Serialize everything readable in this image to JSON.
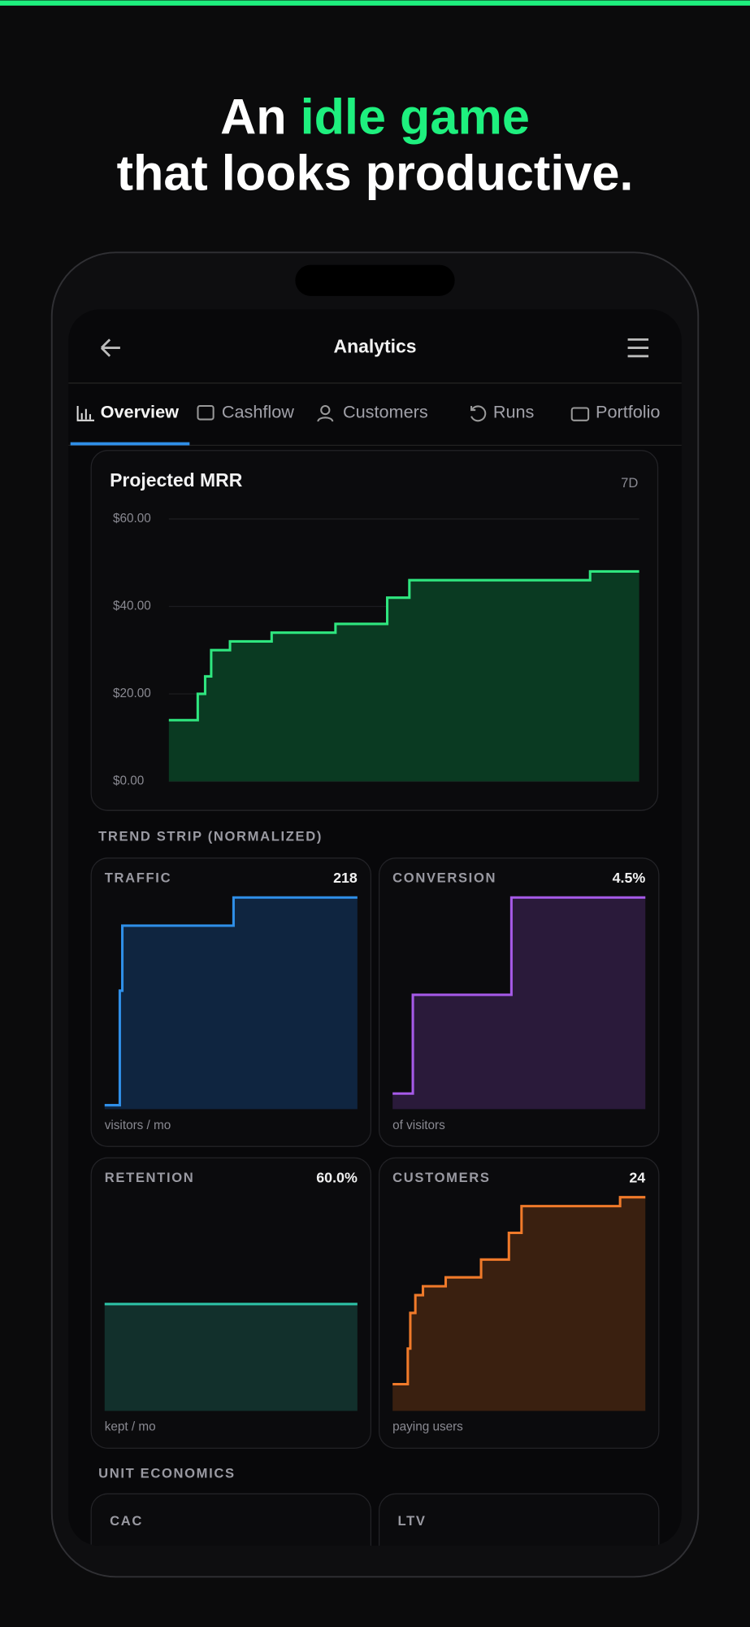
{
  "headline": {
    "lead": "An",
    "highlight": "idle game",
    "line2": "that looks productive."
  },
  "screen": {
    "title": "Analytics",
    "tabs": [
      "Overview",
      "Cashflow",
      "Customers",
      "Runs",
      "Portfolio"
    ]
  },
  "chart_data": [
    {
      "type": "line",
      "step": true,
      "area": true,
      "title": "Projected MRR",
      "range_label": "7D",
      "color": "#2fe67f",
      "fill": "#0a3a22",
      "x": [
        0,
        0.43,
        0.54,
        0.63,
        0.91,
        1.53,
        2.48,
        3.25,
        3.58,
        6.27,
        7
      ],
      "xlim": [
        0,
        7
      ],
      "values": [
        14,
        20,
        24,
        30,
        32,
        34,
        36,
        42,
        46,
        48,
        48
      ],
      "ylim": [
        0,
        60
      ],
      "yticks": [
        {
          "value": 0,
          "label": "$0.00"
        },
        {
          "value": 20,
          "label": "$20.00"
        },
        {
          "value": 40,
          "label": "$40.00"
        },
        {
          "value": 60,
          "label": "$60.00"
        }
      ],
      "grid": true
    },
    {
      "type": "line",
      "step": true,
      "area": true,
      "title": "TRAFFIC",
      "current": 218,
      "caption": "visitors / mo",
      "color": "#2f8fe8",
      "fill": "#0f2540",
      "x": [
        0,
        0.06,
        0.07,
        0.51,
        1
      ],
      "values": [
        4,
        122,
        189,
        218,
        218
      ]
    },
    {
      "type": "line",
      "step": true,
      "area": true,
      "title": "CONVERSION",
      "current": 4.5,
      "current_label": "4.5%",
      "caption": "of visitors",
      "color": "#a65ae8",
      "fill": "#2a1a3a",
      "x": [
        0,
        0.08,
        0.47,
        1
      ],
      "values": [
        0.33,
        2.43,
        4.5,
        4.5
      ]
    },
    {
      "type": "line",
      "step": true,
      "area": true,
      "title": "RETENTION",
      "current": 60,
      "current_label": "60.0%",
      "caption": "kept / mo",
      "color": "#2ec4a8",
      "fill": "#12302c",
      "x": [
        0,
        1
      ],
      "values": [
        60,
        60
      ]
    },
    {
      "type": "line",
      "step": true,
      "area": true,
      "title": "CUSTOMERS",
      "current": 24,
      "caption": "paying users",
      "color": "#f07a2a",
      "fill": "#3a2010",
      "x": [
        0,
        0.06,
        0.07,
        0.09,
        0.12,
        0.21,
        0.35,
        0.46,
        0.51,
        0.9,
        1
      ],
      "values": [
        3,
        7,
        11,
        13,
        14,
        15,
        17,
        20,
        23,
        24,
        24
      ]
    }
  ],
  "trend_strip": {
    "title": "TREND STRIP (NORMALIZED)"
  },
  "unit_economics": {
    "title": "UNIT ECONOMICS",
    "cards": [
      "CAC",
      "LTV"
    ]
  }
}
